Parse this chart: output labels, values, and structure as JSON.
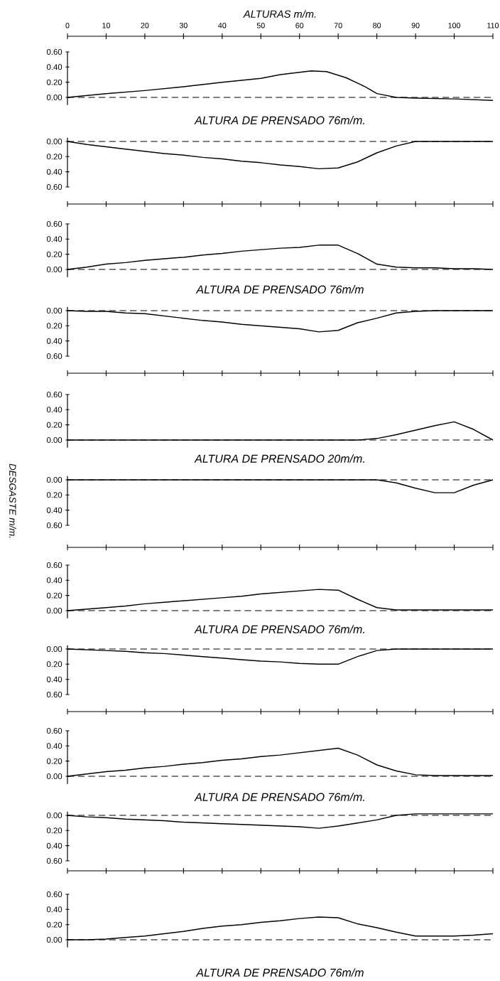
{
  "chart_data": [
    {
      "type": "line",
      "title": "ALTURAS m/m.",
      "xlabel": "ALTURA DE PRENSADO 76m/m.",
      "xlim": [
        0,
        110
      ],
      "xticks": [
        0,
        10,
        20,
        30,
        40,
        50,
        60,
        70,
        80,
        90,
        100,
        110
      ],
      "ylim": [
        -0.1,
        0.6
      ],
      "yticks": [
        {
          "value": 0,
          "label": "0.00"
        },
        {
          "value": 0.2,
          "label": "0.20"
        },
        {
          "value": 0.4,
          "label": "0.40"
        },
        {
          "value": 0.6,
          "label": "0.60"
        }
      ],
      "ref_lines": [
        {
          "axis": "y",
          "value": 0,
          "line_style": "dashed"
        }
      ],
      "x": [
        0,
        10,
        20,
        30,
        40,
        50,
        55,
        63,
        67,
        72,
        77,
        80,
        85,
        90,
        100,
        110
      ],
      "series": [
        {
          "color": "#000000",
          "values": [
            0,
            0.05,
            0.09,
            0.14,
            0.2,
            0.25,
            0.3,
            0.35,
            0.34,
            0.26,
            0.14,
            0.05,
            0,
            -0.01,
            -0.02,
            -0.04
          ]
        }
      ]
    },
    {
      "type": "line",
      "categories": [
        null,
        null,
        null,
        null,
        null,
        null,
        null,
        null,
        null,
        null,
        null,
        null,
        null,
        null,
        null,
        null,
        null,
        null,
        null,
        null,
        null,
        null,
        null
      ],
      "tick_labels": "y",
      "ylim": [
        0.6,
        -0.05
      ],
      "yticks": [
        {
          "value": 0,
          "label": "0.00"
        },
        {
          "value": 0.2,
          "label": "0.20"
        },
        {
          "value": 0.4,
          "label": "0.40"
        },
        {
          "value": 0.6,
          "label": "0.60"
        }
      ],
      "ref_lines": [
        {
          "axis": "y",
          "value": 0,
          "line_style": "dashed"
        }
      ],
      "series": [
        {
          "color": "#000000",
          "values": [
            0,
            0.04,
            0.07,
            0.1,
            0.13,
            0.16,
            0.18,
            0.21,
            0.23,
            0.26,
            0.28,
            0.31,
            0.33,
            0.36,
            0.35,
            0.27,
            0.15,
            0.06,
            0,
            0,
            0,
            0,
            0
          ]
        }
      ]
    },
    {
      "type": "line",
      "xlabel": "ALTURA DE PRENSADO 76m/m",
      "categories": [
        null,
        null,
        null,
        null,
        null,
        null,
        null,
        null,
        null,
        null,
        null,
        null,
        null,
        null,
        null,
        null,
        null,
        null,
        null,
        null,
        null,
        null,
        null
      ],
      "tick_labels": "y",
      "ylim": [
        -0.1,
        0.6
      ],
      "yticks": [
        {
          "value": 0,
          "label": "0.00"
        },
        {
          "value": 0.2,
          "label": "0.20"
        },
        {
          "value": 0.4,
          "label": "0.40"
        },
        {
          "value": 0.6,
          "label": "0.60"
        }
      ],
      "ref_lines": [
        {
          "axis": "y",
          "value": 0,
          "line_style": "dashed"
        }
      ],
      "series": [
        {
          "color": "#000000",
          "values": [
            0,
            0.03,
            0.07,
            0.09,
            0.12,
            0.14,
            0.16,
            0.19,
            0.21,
            0.24,
            0.26,
            0.28,
            0.29,
            0.32,
            0.32,
            0.21,
            0.07,
            0.03,
            0.02,
            0.02,
            0.01,
            0.01,
            0
          ]
        }
      ]
    },
    {
      "type": "line",
      "categories": [
        null,
        null,
        null,
        null,
        null,
        null,
        null,
        null,
        null,
        null,
        null,
        null,
        null,
        null,
        null,
        null,
        null,
        null,
        null,
        null,
        null,
        null,
        null
      ],
      "tick_labels": "y",
      "ylim": [
        0.6,
        -0.05
      ],
      "yticks": [
        {
          "value": 0,
          "label": "0.00"
        },
        {
          "value": 0.2,
          "label": "0.20"
        },
        {
          "value": 0.4,
          "label": "0.40"
        },
        {
          "value": 0.6,
          "label": "0.60"
        }
      ],
      "ref_lines": [
        {
          "axis": "y",
          "value": 0,
          "line_style": "dashed"
        }
      ],
      "series": [
        {
          "color": "#000000",
          "values": [
            0,
            0.01,
            0.01,
            0.03,
            0.04,
            0.07,
            0.1,
            0.13,
            0.15,
            0.18,
            0.2,
            0.22,
            0.24,
            0.28,
            0.26,
            0.16,
            0.1,
            0.03,
            0.01,
            0,
            0,
            0,
            0
          ]
        }
      ]
    },
    {
      "type": "line",
      "xlabel": "ALTURA DE PRENSADO 20m/m.",
      "categories": [
        null,
        null,
        null,
        null,
        null,
        null,
        null,
        null,
        null,
        null,
        null,
        null,
        null,
        null,
        null,
        null,
        null,
        null,
        null,
        null,
        null,
        null,
        null
      ],
      "tick_labels": "y",
      "ylim": [
        -0.1,
        0.6
      ],
      "yticks": [
        {
          "value": 0,
          "label": "0.00"
        },
        {
          "value": 0.2,
          "label": "0.20"
        },
        {
          "value": 0.4,
          "label": "0.40"
        },
        {
          "value": 0.6,
          "label": "0.60"
        }
      ],
      "ref_lines": [
        {
          "axis": "y",
          "value": 0,
          "line_style": "dashed"
        }
      ],
      "series": [
        {
          "color": "#000000",
          "values": [
            0,
            0,
            0,
            0,
            0,
            0,
            0,
            0,
            0,
            0,
            0,
            0,
            0,
            0,
            0,
            0,
            0.02,
            0.07,
            0.13,
            0.19,
            0.24,
            0.14,
            0
          ]
        }
      ]
    },
    {
      "type": "line",
      "ylabel": "DESGASTE m/m.",
      "categories": [
        null,
        null,
        null,
        null,
        null,
        null,
        null,
        null,
        null,
        null,
        null,
        null,
        null,
        null,
        null,
        null,
        null,
        null,
        null,
        null,
        null,
        null,
        null
      ],
      "tick_labels": "y",
      "ylim": [
        0.6,
        -0.05
      ],
      "yticks": [
        {
          "value": 0,
          "label": "0.00"
        },
        {
          "value": 0.2,
          "label": "0.20"
        },
        {
          "value": 0.4,
          "label": "0.40"
        },
        {
          "value": 0.6,
          "label": "0.60"
        }
      ],
      "ref_lines": [
        {
          "axis": "y",
          "value": 0,
          "line_style": "dashed"
        }
      ],
      "series": [
        {
          "color": "#000000",
          "values": [
            0,
            0,
            0,
            0,
            0,
            0,
            0,
            0,
            0,
            0,
            0,
            0,
            0,
            0,
            0,
            0,
            0,
            0.04,
            0.11,
            0.17,
            0.17,
            0.07,
            0
          ]
        }
      ]
    },
    {
      "type": "line",
      "xlabel": "ALTURA DE PRENSADO 76m/m.",
      "categories": [
        null,
        null,
        null,
        null,
        null,
        null,
        null,
        null,
        null,
        null,
        null,
        null,
        null,
        null,
        null,
        null,
        null,
        null,
        null,
        null,
        null,
        null,
        null
      ],
      "tick_labels": "y",
      "ylim": [
        -0.1,
        0.6
      ],
      "yticks": [
        {
          "value": 0,
          "label": "0.00"
        },
        {
          "value": 0.2,
          "label": "0.20"
        },
        {
          "value": 0.4,
          "label": "0.40"
        },
        {
          "value": 0.6,
          "label": "0.60"
        }
      ],
      "ref_lines": [
        {
          "axis": "y",
          "value": 0,
          "line_style": "dashed"
        }
      ],
      "series": [
        {
          "color": "#000000",
          "values": [
            0,
            0.02,
            0.04,
            0.06,
            0.09,
            0.11,
            0.13,
            0.15,
            0.17,
            0.19,
            0.22,
            0.24,
            0.26,
            0.28,
            0.27,
            0.15,
            0.04,
            0.01,
            0.01,
            0.01,
            0.01,
            0.01,
            0.01
          ]
        }
      ]
    },
    {
      "type": "line",
      "categories": [
        null,
        null,
        null,
        null,
        null,
        null,
        null,
        null,
        null,
        null,
        null,
        null,
        null,
        null,
        null,
        null,
        null,
        null,
        null,
        null,
        null,
        null,
        null
      ],
      "tick_labels": "y",
      "ylim": [
        0.6,
        -0.05
      ],
      "yticks": [
        {
          "value": 0,
          "label": "0.00"
        },
        {
          "value": 0.2,
          "label": "0.20"
        },
        {
          "value": 0.4,
          "label": "0.40"
        },
        {
          "value": 0.6,
          "label": "0.60"
        }
      ],
      "ref_lines": [
        {
          "axis": "y",
          "value": 0,
          "line_style": "dashed"
        }
      ],
      "series": [
        {
          "color": "#000000",
          "values": [
            0,
            0.01,
            0.02,
            0.03,
            0.05,
            0.06,
            0.08,
            0.1,
            0.12,
            0.14,
            0.16,
            0.17,
            0.19,
            0.2,
            0.2,
            0.1,
            0.02,
            0,
            0,
            0,
            0,
            0,
            0
          ]
        }
      ]
    },
    {
      "type": "line",
      "xlabel": "ALTURA DE PRENSADO 76m/m.",
      "categories": [
        null,
        null,
        null,
        null,
        null,
        null,
        null,
        null,
        null,
        null,
        null,
        null,
        null,
        null,
        null,
        null,
        null,
        null,
        null,
        null,
        null,
        null,
        null
      ],
      "tick_labels": "y",
      "ylim": [
        -0.1,
        0.6
      ],
      "yticks": [
        {
          "value": 0,
          "label": "0.00"
        },
        {
          "value": 0.2,
          "label": "0.20"
        },
        {
          "value": 0.4,
          "label": "0.40"
        },
        {
          "value": 0.6,
          "label": "0.60"
        }
      ],
      "ref_lines": [
        {
          "axis": "y",
          "value": 0,
          "line_style": "dashed"
        }
      ],
      "series": [
        {
          "color": "#000000",
          "values": [
            0,
            0.03,
            0.06,
            0.08,
            0.11,
            0.13,
            0.16,
            0.18,
            0.21,
            0.23,
            0.26,
            0.28,
            0.31,
            0.34,
            0.37,
            0.28,
            0.15,
            0.07,
            0.02,
            0.01,
            0.01,
            0.01,
            0.01
          ]
        }
      ]
    },
    {
      "type": "line",
      "categories": [
        null,
        null,
        null,
        null,
        null,
        null,
        null,
        null,
        null,
        null,
        null,
        null,
        null,
        null,
        null,
        null,
        null,
        null,
        null,
        null,
        null,
        null,
        null
      ],
      "tick_labels": "y",
      "ylim": [
        0.6,
        -0.05
      ],
      "yticks": [
        {
          "value": 0,
          "label": "0.00"
        },
        {
          "value": 0.2,
          "label": "0.20"
        },
        {
          "value": 0.4,
          "label": "0.40"
        },
        {
          "value": 0.6,
          "label": "0.60"
        }
      ],
      "ref_lines": [
        {
          "axis": "y",
          "value": 0,
          "line_style": "dashed"
        }
      ],
      "series": [
        {
          "color": "#000000",
          "values": [
            0,
            0.02,
            0.03,
            0.05,
            0.06,
            0.07,
            0.09,
            0.1,
            0.11,
            0.12,
            0.13,
            0.14,
            0.15,
            0.17,
            0.14,
            0.1,
            0.06,
            0,
            -0.02,
            -0.02,
            -0.02,
            -0.02,
            -0.02
          ]
        }
      ]
    },
    {
      "type": "line",
      "xlabel": "ALTURA DE PRENSADO 76m/m",
      "categories": [
        null,
        null,
        null,
        null,
        null,
        null,
        null,
        null,
        null,
        null,
        null,
        null,
        null,
        null,
        null,
        null,
        null,
        null,
        null,
        null,
        null,
        null,
        null
      ],
      "tick_labels": "y",
      "ylim": [
        -0.1,
        0.6
      ],
      "yticks": [
        {
          "value": 0,
          "label": "0.00"
        },
        {
          "value": 0.2,
          "label": "0.20"
        },
        {
          "value": 0.4,
          "label": "0.40"
        },
        {
          "value": 0.6,
          "label": "0.60"
        }
      ],
      "ref_lines": [
        {
          "axis": "y",
          "value": 0,
          "line_style": "dashed"
        }
      ],
      "series": [
        {
          "color": "#000000",
          "values": [
            0,
            0,
            0.01,
            0.03,
            0.05,
            0.08,
            0.11,
            0.15,
            0.18,
            0.2,
            0.23,
            0.25,
            0.28,
            0.3,
            0.29,
            0.21,
            0.16,
            0.1,
            0.05,
            0.05,
            0.05,
            0.06,
            0.08
          ]
        }
      ]
    }
  ]
}
